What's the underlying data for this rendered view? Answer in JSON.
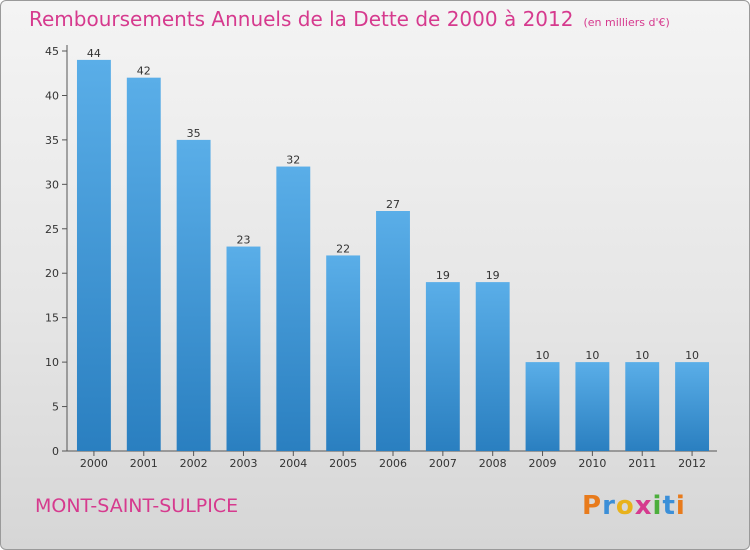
{
  "header": {
    "title": "Remboursements Annuels de la Dette de 2000 à 2012",
    "subtitle": "(en milliers d'€)"
  },
  "footer": {
    "commune": "MONT-SAINT-SULPICE",
    "logo_letters": [
      "P",
      "r",
      "o",
      "x",
      "i",
      "t",
      "i"
    ]
  },
  "colors": {
    "title": "#d63a8e",
    "bar_top": "#5aaee8",
    "bar_bottom": "#2a7fc0",
    "axis": "#555555",
    "logo": [
      "#e87b1c",
      "#3b8fd8",
      "#e8b21c",
      "#d63a8e",
      "#4cae3c",
      "#3b8fd8",
      "#e87b1c"
    ]
  },
  "chart_data": {
    "type": "bar",
    "categories": [
      "2000",
      "2001",
      "2002",
      "2003",
      "2004",
      "2005",
      "2006",
      "2007",
      "2008",
      "2009",
      "2010",
      "2011",
      "2012"
    ],
    "values": [
      44,
      42,
      35,
      23,
      32,
      22,
      27,
      19,
      19,
      10,
      10,
      10,
      10
    ],
    "ylim": [
      0,
      45
    ],
    "yticks": [
      0,
      5,
      10,
      15,
      20,
      25,
      30,
      35,
      40,
      45
    ],
    "grid": false,
    "legend": "none"
  }
}
